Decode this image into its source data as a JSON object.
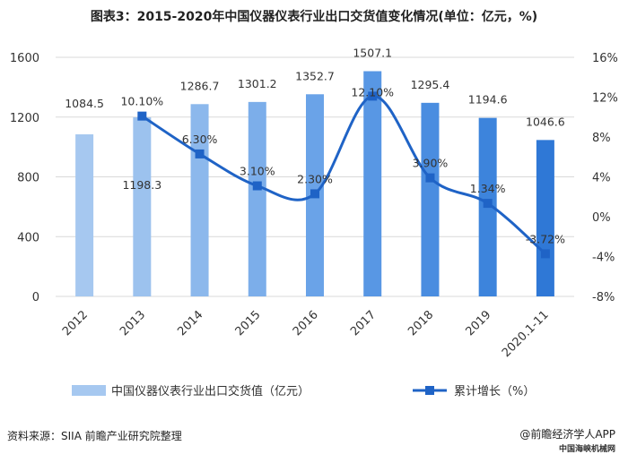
{
  "header": {
    "title": "图表3：2015-2020年中国仪器仪表行业出口交货值变化情况(单位：亿元，%)"
  },
  "footer": {
    "source": "资料来源：SIIA 前瞻产业研究院整理",
    "brand": "@前瞻经济学人APP",
    "brand_sub": "中国海峡机械网"
  },
  "chart_data": {
    "type": "bar+line",
    "categories": [
      "2012",
      "2013",
      "2014",
      "2015",
      "2016",
      "2017",
      "2018",
      "2019",
      "2020.1-11"
    ],
    "bar_series": {
      "name": "中国仪器仪表行业出口交货值（亿元）",
      "values": [
        1084.5,
        1198.3,
        1286.7,
        1301.2,
        1352.7,
        1507.1,
        1295.4,
        1194.6,
        1046.6
      ],
      "value_labels": [
        "1084.5",
        "1198.3",
        "1286.7",
        "1301.2",
        "1352.7",
        "1507.1",
        "1295.4",
        "1194.6",
        "1046.6"
      ],
      "colors": [
        "#a6c8f0",
        "#9cc2ee",
        "#8cb8ec",
        "#7caeea",
        "#6aa3e8",
        "#5897e4",
        "#4a8de0",
        "#3d84dc",
        "#2f78d6"
      ]
    },
    "line_series": {
      "name": "累计增长（%）",
      "values": [
        null,
        10.1,
        6.3,
        3.1,
        2.3,
        12.1,
        3.9,
        1.34,
        -3.72
      ],
      "value_labels": [
        "",
        "10.10%",
        "6.30%",
        "3.10%",
        "2.30%",
        "12.10%",
        "3.90%",
        "1.34%",
        "-3.72%"
      ],
      "color": "#1f63c6"
    },
    "y_left": {
      "ylim": [
        0,
        1600
      ],
      "ticks": [
        0,
        400,
        800,
        1200,
        1600
      ]
    },
    "y_right": {
      "ylim": [
        -8,
        16
      ],
      "ticks": [
        -8,
        -4,
        0,
        4,
        8,
        12,
        16
      ],
      "tick_labels": [
        "-8%",
        "-4%",
        "0%",
        "4%",
        "8%",
        "12%",
        "16%"
      ]
    },
    "grid": true,
    "legend_position": "bottom"
  }
}
